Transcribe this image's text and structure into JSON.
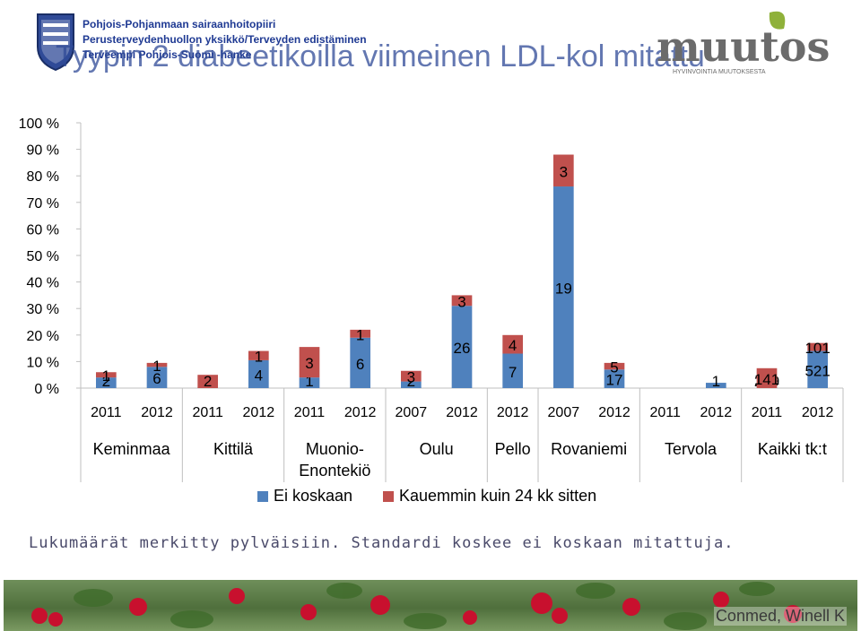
{
  "header": {
    "org_lines": [
      "Pohjois-Pohjanmaan sairaanhoitopiiri",
      "Perusterveydenhuollon yksikkö/Terveyden edistäminen",
      "Terveempi Pohjois-Suomi -hanke"
    ],
    "title": "Tyypin 2 diabeetikoilla viimeinen LDL-kol mitattu",
    "brand": "muutos",
    "brand_tagline": "HYVINVOINTIA MUUTOKSESTA"
  },
  "colors": {
    "series_ei_koskaan": "#4f81bd",
    "series_kauemmin": "#c0504d",
    "axis": "#bfbfbf"
  },
  "chart_data": {
    "type": "bar",
    "stacked": true,
    "title": "",
    "ylim": [
      0,
      100
    ],
    "y_ticks": [
      "0 %",
      "10 %",
      "20 %",
      "30 %",
      "40 %",
      "50 %",
      "60 %",
      "70 %",
      "80 %",
      "90 %",
      "100 %"
    ],
    "grid": true,
    "legend_position": "bottom",
    "groups": [
      {
        "name": "Keminmaa",
        "years": [
          "2011",
          "2012"
        ]
      },
      {
        "name": "Kittilä",
        "years": [
          "2011",
          "2012"
        ]
      },
      {
        "name": "Muonio-Enontekiö",
        "years": [
          "2011",
          "2012"
        ]
      },
      {
        "name": "Oulu",
        "years": [
          "2007",
          "2012"
        ]
      },
      {
        "name": "Pello",
        "years": [
          "2012"
        ]
      },
      {
        "name": "Rovaniemi",
        "years": [
          "2007",
          "2012"
        ]
      },
      {
        "name": "Tervola",
        "years": [
          "2011",
          "2012"
        ]
      },
      {
        "name": "Kaikki tk:t",
        "years": [
          "2011",
          "2012"
        ]
      }
    ],
    "series": [
      {
        "name": "Ei koskaan",
        "values": [
          4,
          8,
          0,
          10.5,
          4,
          19,
          2.5,
          31,
          13,
          76,
          7,
          0,
          2,
          0,
          14
        ],
        "labels": [
          "2",
          "6",
          "",
          "4",
          "1",
          "6",
          "2",
          "26",
          "7",
          "19",
          "17",
          "",
          "1",
          "209",
          "521"
        ]
      },
      {
        "name": "Kauemmin kuin 24 kk sitten",
        "values": [
          2,
          1.5,
          5,
          3.5,
          11.5,
          3,
          4,
          4,
          7,
          12,
          2.5,
          0,
          0,
          7.5,
          3
        ],
        "labels": [
          "1",
          "1",
          "2",
          "1",
          "3",
          "1",
          "3",
          "3",
          "4",
          "3",
          "5",
          "",
          "",
          "141",
          "101"
        ]
      }
    ]
  },
  "note": "Lukumäärät merkitty pylväisiin. Standardi koskee ei koskaan mitattuja.",
  "footer": {
    "credit": "Conmed, Winell K"
  }
}
